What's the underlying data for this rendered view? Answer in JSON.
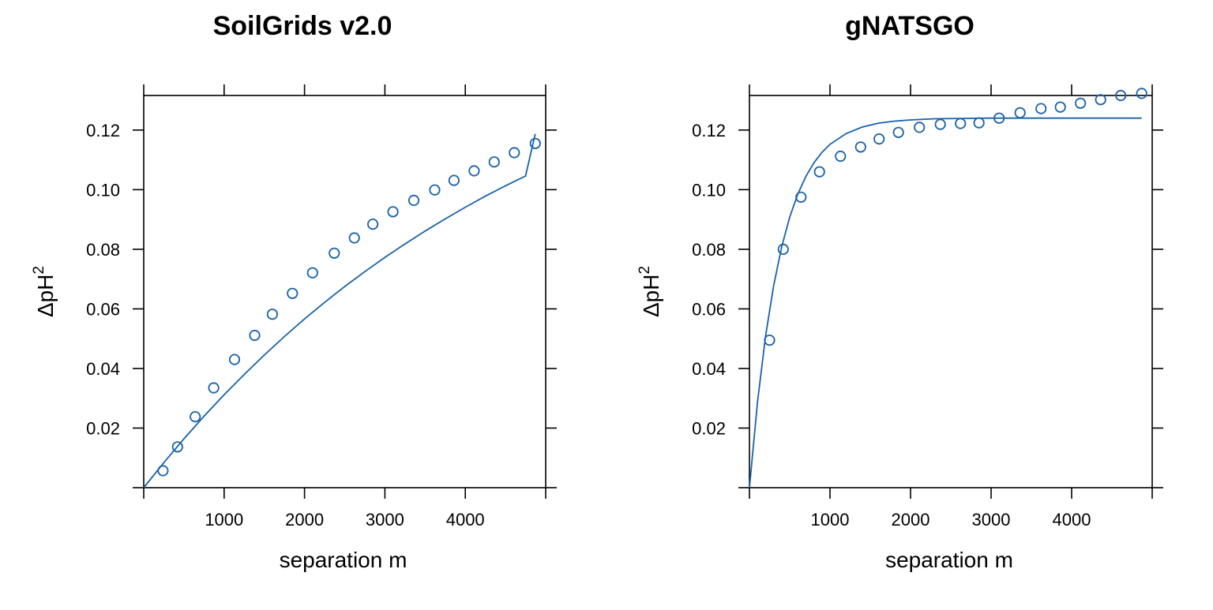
{
  "chart_data": [
    {
      "type": "scatter",
      "title": "SoilGrids v2.0",
      "xlabel": "separation m",
      "ylabel_base": "ΔpH",
      "ylabel_sup": "2",
      "xlim": [
        0,
        5000
      ],
      "ylim": [
        0,
        0.1316
      ],
      "xticks": [
        1000,
        2000,
        3000,
        4000
      ],
      "xtick_labels": [
        "1000",
        "2000",
        "3000",
        "4000"
      ],
      "yticks": [
        0.02,
        0.04,
        0.06,
        0.08,
        0.1,
        0.12
      ],
      "ytick_labels": [
        "0.02",
        "0.04",
        "0.06",
        "0.08",
        "0.10",
        "0.12"
      ],
      "color": "#1a62a8",
      "series": [
        {
          "kind": "points",
          "x": [
            240,
            420,
            640,
            870,
            1130,
            1380,
            1600,
            1850,
            2100,
            2370,
            2620,
            2850,
            3100,
            3360,
            3620,
            3860,
            4110,
            4360,
            4610,
            4870
          ],
          "y": [
            0.0057,
            0.0137,
            0.0238,
            0.0335,
            0.043,
            0.0511,
            0.0582,
            0.0652,
            0.0721,
            0.0787,
            0.0838,
            0.0884,
            0.0926,
            0.0964,
            0.0999,
            0.1031,
            0.1063,
            0.1093,
            0.1124,
            0.1155
          ]
        },
        {
          "kind": "fit",
          "x": [
            0,
            250,
            500,
            750,
            1000,
            1250,
            1500,
            1750,
            2000,
            2250,
            2500,
            2750,
            3000,
            3250,
            3500,
            3750,
            4000,
            4250,
            4500,
            4750,
            4870
          ],
          "y": [
            0.0,
            0.0084,
            0.0164,
            0.024,
            0.0312,
            0.038,
            0.0445,
            0.0507,
            0.0566,
            0.0622,
            0.0675,
            0.0725,
            0.0773,
            0.0818,
            0.0861,
            0.0902,
            0.0941,
            0.0978,
            0.1013,
            0.1046,
            0.1187
          ]
        }
      ]
    },
    {
      "type": "scatter",
      "title": "gNATSGO",
      "xlabel": "separation m",
      "ylabel_base": "ΔpH",
      "ylabel_sup": "2",
      "xlim": [
        0,
        5000
      ],
      "ylim": [
        0,
        0.1316
      ],
      "xticks": [
        1000,
        2000,
        3000,
        4000
      ],
      "xtick_labels": [
        "1000",
        "2000",
        "3000",
        "4000"
      ],
      "yticks": [
        0.02,
        0.04,
        0.06,
        0.08,
        0.1,
        0.12
      ],
      "ytick_labels": [
        "0.02",
        "0.04",
        "0.06",
        "0.08",
        "0.10",
        "0.12"
      ],
      "color": "#1a62a8",
      "series": [
        {
          "kind": "points",
          "x": [
            250,
            420,
            640,
            870,
            1130,
            1380,
            1610,
            1850,
            2110,
            2370,
            2620,
            2850,
            3100,
            3360,
            3620,
            3860,
            4110,
            4360,
            4610,
            4870
          ],
          "y": [
            0.0495,
            0.08,
            0.0975,
            0.106,
            0.1112,
            0.1143,
            0.117,
            0.1192,
            0.1209,
            0.1219,
            0.1222,
            0.1224,
            0.124,
            0.1258,
            0.1272,
            0.1277,
            0.129,
            0.1302,
            0.1316,
            0.1323
          ]
        },
        {
          "kind": "fit",
          "x": [
            0,
            100,
            200,
            300,
            400,
            500,
            600,
            700,
            800,
            900,
            1000,
            1200,
            1400,
            1600,
            1800,
            2000,
            2300,
            2600,
            3000,
            3500,
            4000,
            4500,
            4870
          ],
          "y": [
            0.0,
            0.0287,
            0.0508,
            0.0677,
            0.0808,
            0.0908,
            0.0985,
            0.1044,
            0.109,
            0.1125,
            0.1152,
            0.1188,
            0.121,
            0.1223,
            0.123,
            0.1234,
            0.1238,
            0.1239,
            0.124,
            0.124,
            0.124,
            0.124,
            0.124
          ]
        }
      ]
    }
  ]
}
